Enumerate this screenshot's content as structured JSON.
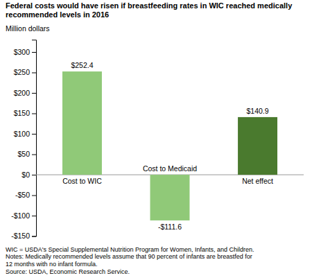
{
  "chart_data": {
    "type": "bar",
    "title": "Federal costs would have risen if breastfeeding rates in WIC reached medically\nrecommended levels in 2016",
    "ylabel": "Million dollars",
    "footnote": "WIC = USDA's Special Supplemental Nutrition Program for Women, Infants, and Children.\nNotes: Medically recommended levels assume that 90 percent of infants are breastfed for\n12 months with no infant formula.\nSource:  USDA, Economic Research Service.",
    "categories": [
      "Cost to WIC",
      "Cost to Medicaid",
      "Net effect"
    ],
    "values": [
      252.4,
      -111.6,
      140.9
    ],
    "value_labels": [
      "$252.4",
      "-$111.6",
      "$140.9"
    ],
    "colors": [
      "#90c978",
      "#90c978",
      "#4a7a2e"
    ],
    "ylim": [
      -150,
      330
    ],
    "yticks": [
      {
        "value": -150,
        "label": "-$150"
      },
      {
        "value": -100,
        "label": "-$100"
      },
      {
        "value": -50,
        "label": "-$50"
      },
      {
        "value": 0,
        "label": "$0"
      },
      {
        "value": 50,
        "label": "$50"
      },
      {
        "value": 100,
        "label": "$100"
      },
      {
        "value": 150,
        "label": "$150"
      },
      {
        "value": 200,
        "label": "$200"
      },
      {
        "value": 250,
        "label": "$250"
      },
      {
        "value": 300,
        "label": "$300"
      }
    ],
    "data_labels": true,
    "tick_labels": "y",
    "grid": false
  }
}
